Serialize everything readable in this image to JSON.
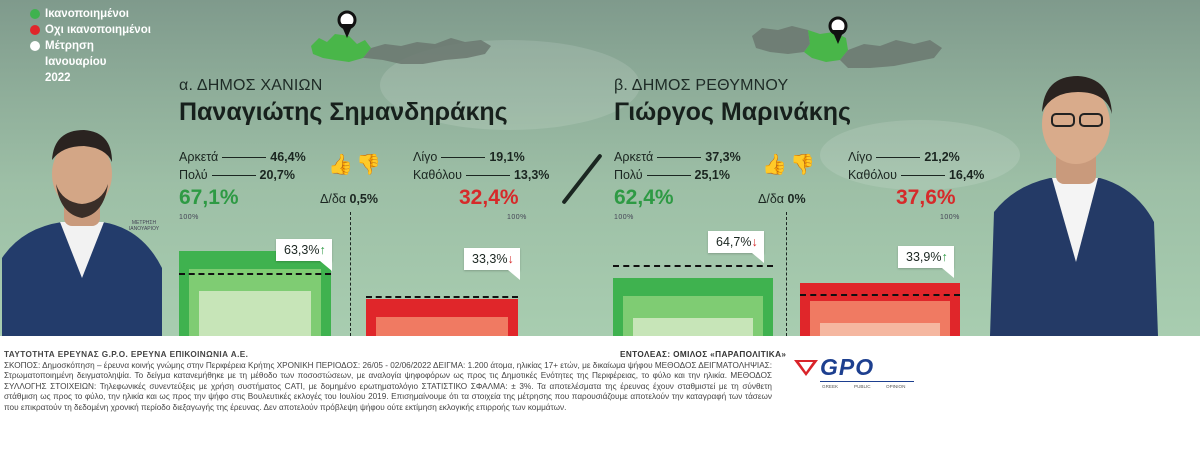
{
  "legend": {
    "items": [
      {
        "label": "Ικανοποιημένοι",
        "color": "#3fb24f"
      },
      {
        "label": "Οχι ικανοποιημένοι",
        "color": "#e0262a"
      },
      {
        "label": "Μέτρηση Ιανουαρίου 2022",
        "color": "#ffffff"
      }
    ]
  },
  "colors": {
    "green": "#3fb24f",
    "red": "#e0262a",
    "light_green": "#c7e5b8",
    "light_red": "#f5b7a0"
  },
  "mayors": [
    {
      "subtitle": "α. ΔΗΜΟΣ ΧΑΝΙΩΝ",
      "name": "Παναγιώτης Σημανδηράκης",
      "positive": [
        {
          "label": "Αρκετά",
          "value": "46,4%"
        },
        {
          "label": "Πολύ",
          "value": "20,7%"
        }
      ],
      "positive_total": "67,1%",
      "negative": [
        {
          "label": "Λίγο",
          "value": "19,1%"
        },
        {
          "label": "Καθόλου",
          "value": "13,3%"
        }
      ],
      "negative_total": "32,4%",
      "dk_label": "Δ/δα",
      "dk_value": "0,5%",
      "scale_label": "100%",
      "jan_label": "ΜΕΤΡΗΣΗ ΙΑΝΟΥΑΡΙΟΥ",
      "jan_positive": "63,3%",
      "jan_negative": "33,3%"
    },
    {
      "subtitle": "β. ΔΗΜΟΣ ΡΕΘΥΜΝΟΥ",
      "name": "Γιώργος Μαρινάκης",
      "positive": [
        {
          "label": "Αρκετά",
          "value": "37,3%"
        },
        {
          "label": "Πολύ",
          "value": "25,1%"
        }
      ],
      "positive_total": "62,4%",
      "negative": [
        {
          "label": "Λίγο",
          "value": "21,2%"
        },
        {
          "label": "Καθόλου",
          "value": "16,4%"
        }
      ],
      "negative_total": "37,6%",
      "dk_label": "Δ/δα",
      "dk_value": "0%",
      "scale_label": "100%",
      "jan_positive": "64,7%",
      "jan_negative": "33,9%"
    }
  ],
  "chart_data": {
    "type": "bar",
    "categories": [
      "Ικανοποιημένοι",
      "Οχι ικανοποιημένοι"
    ],
    "series": [
      {
        "name": "α. ΔΗΜΟΣ ΧΑΝΙΩΝ",
        "values": [
          67.1,
          32.4
        ],
        "previous": [
          63.3,
          33.3
        ]
      },
      {
        "name": "β. ΔΗΜΟΣ ΡΕΘΥΜΝΟΥ",
        "values": [
          62.4,
          37.6
        ],
        "previous": [
          64.7,
          33.9
        ]
      }
    ],
    "ylim": [
      0,
      100
    ]
  },
  "footer": {
    "lines": [
      "ΤΑΥΤΟΤΗΤΑ ΕΡΕΥΝΑΣ G.P.O. ΕΡΕΥΝΑ ΕΠΙΚΟΙΝΩΝΙΑ Α.Ε.",
      "ΣΚΟΠΟΣ: Δημοσκόπηση – έρευνα κοινής γνώμης στην Περιφέρεια Κρήτης ΧΡΟΝΙΚΗ ΠΕΡΙΟΔΟΣ: 26/05 - 02/06/2022 ΔΕΙΓΜΑ: 1.200 άτομα, ηλικίας 17+ ετών, με δικαίωμα ψήφου ΜΕΘΟΔΟΣ ΔΕΙΓΜΑΤΟΛΗΨΙΑΣ: Στρωματοποιημένη δειγματοληψία. Το δείγμα κατανεμήθηκε με τη μέθοδο των ποσοστώσεων, με αναλογία ψηφοφόρων ως προς τις Δημοτικές Ενότητες της Περιφέρειας, το φύλο και την ηλικία. ΜΕΘΟΔΟΣ ΣΥΛΛΟΓΗΣ ΣΤΟΙΧΕΙΩΝ: Τηλεφωνικές συνεντεύξεις με χρήση συστήματος CATI, με δομημένο ερωτηματολόγιο ΣΤΑΤΙΣΤΙΚΟ ΣΦΑΛΜΑ: ± 3%. Τα αποτελέσματα της έρευνας έχουν σταθμιστεί με τη σύνθετη στάθμιση ως προς το φύλο, την ηλικία και ως προς την ψήφο στις Βουλευτικές εκλογές του Ιουλίου 2019. Επισημαίνουμε ότι τα στοιχεία της μέτρησης που παρουσιάζουμε αποτελούν την καταγραφή των τάσεων που επικρατούν τη δεδομένη χρονική περίοδο διεξαγωγής της έρευνας. Δεν αποτελούν πρόβλεψη ψήφου ούτε εκτίμηση εκλογικής επιρροής των κομμάτων."
    ],
    "client": "ΕΝΤΟΛΕΑΣ: ΟΜΙΛΟΣ «ΠΑΡΑΠΟΛΙΤΙΚΑ»",
    "logo_text": "GPO",
    "logo_sub": [
      "GREEK",
      "PUBLIC",
      "OPINION"
    ]
  }
}
